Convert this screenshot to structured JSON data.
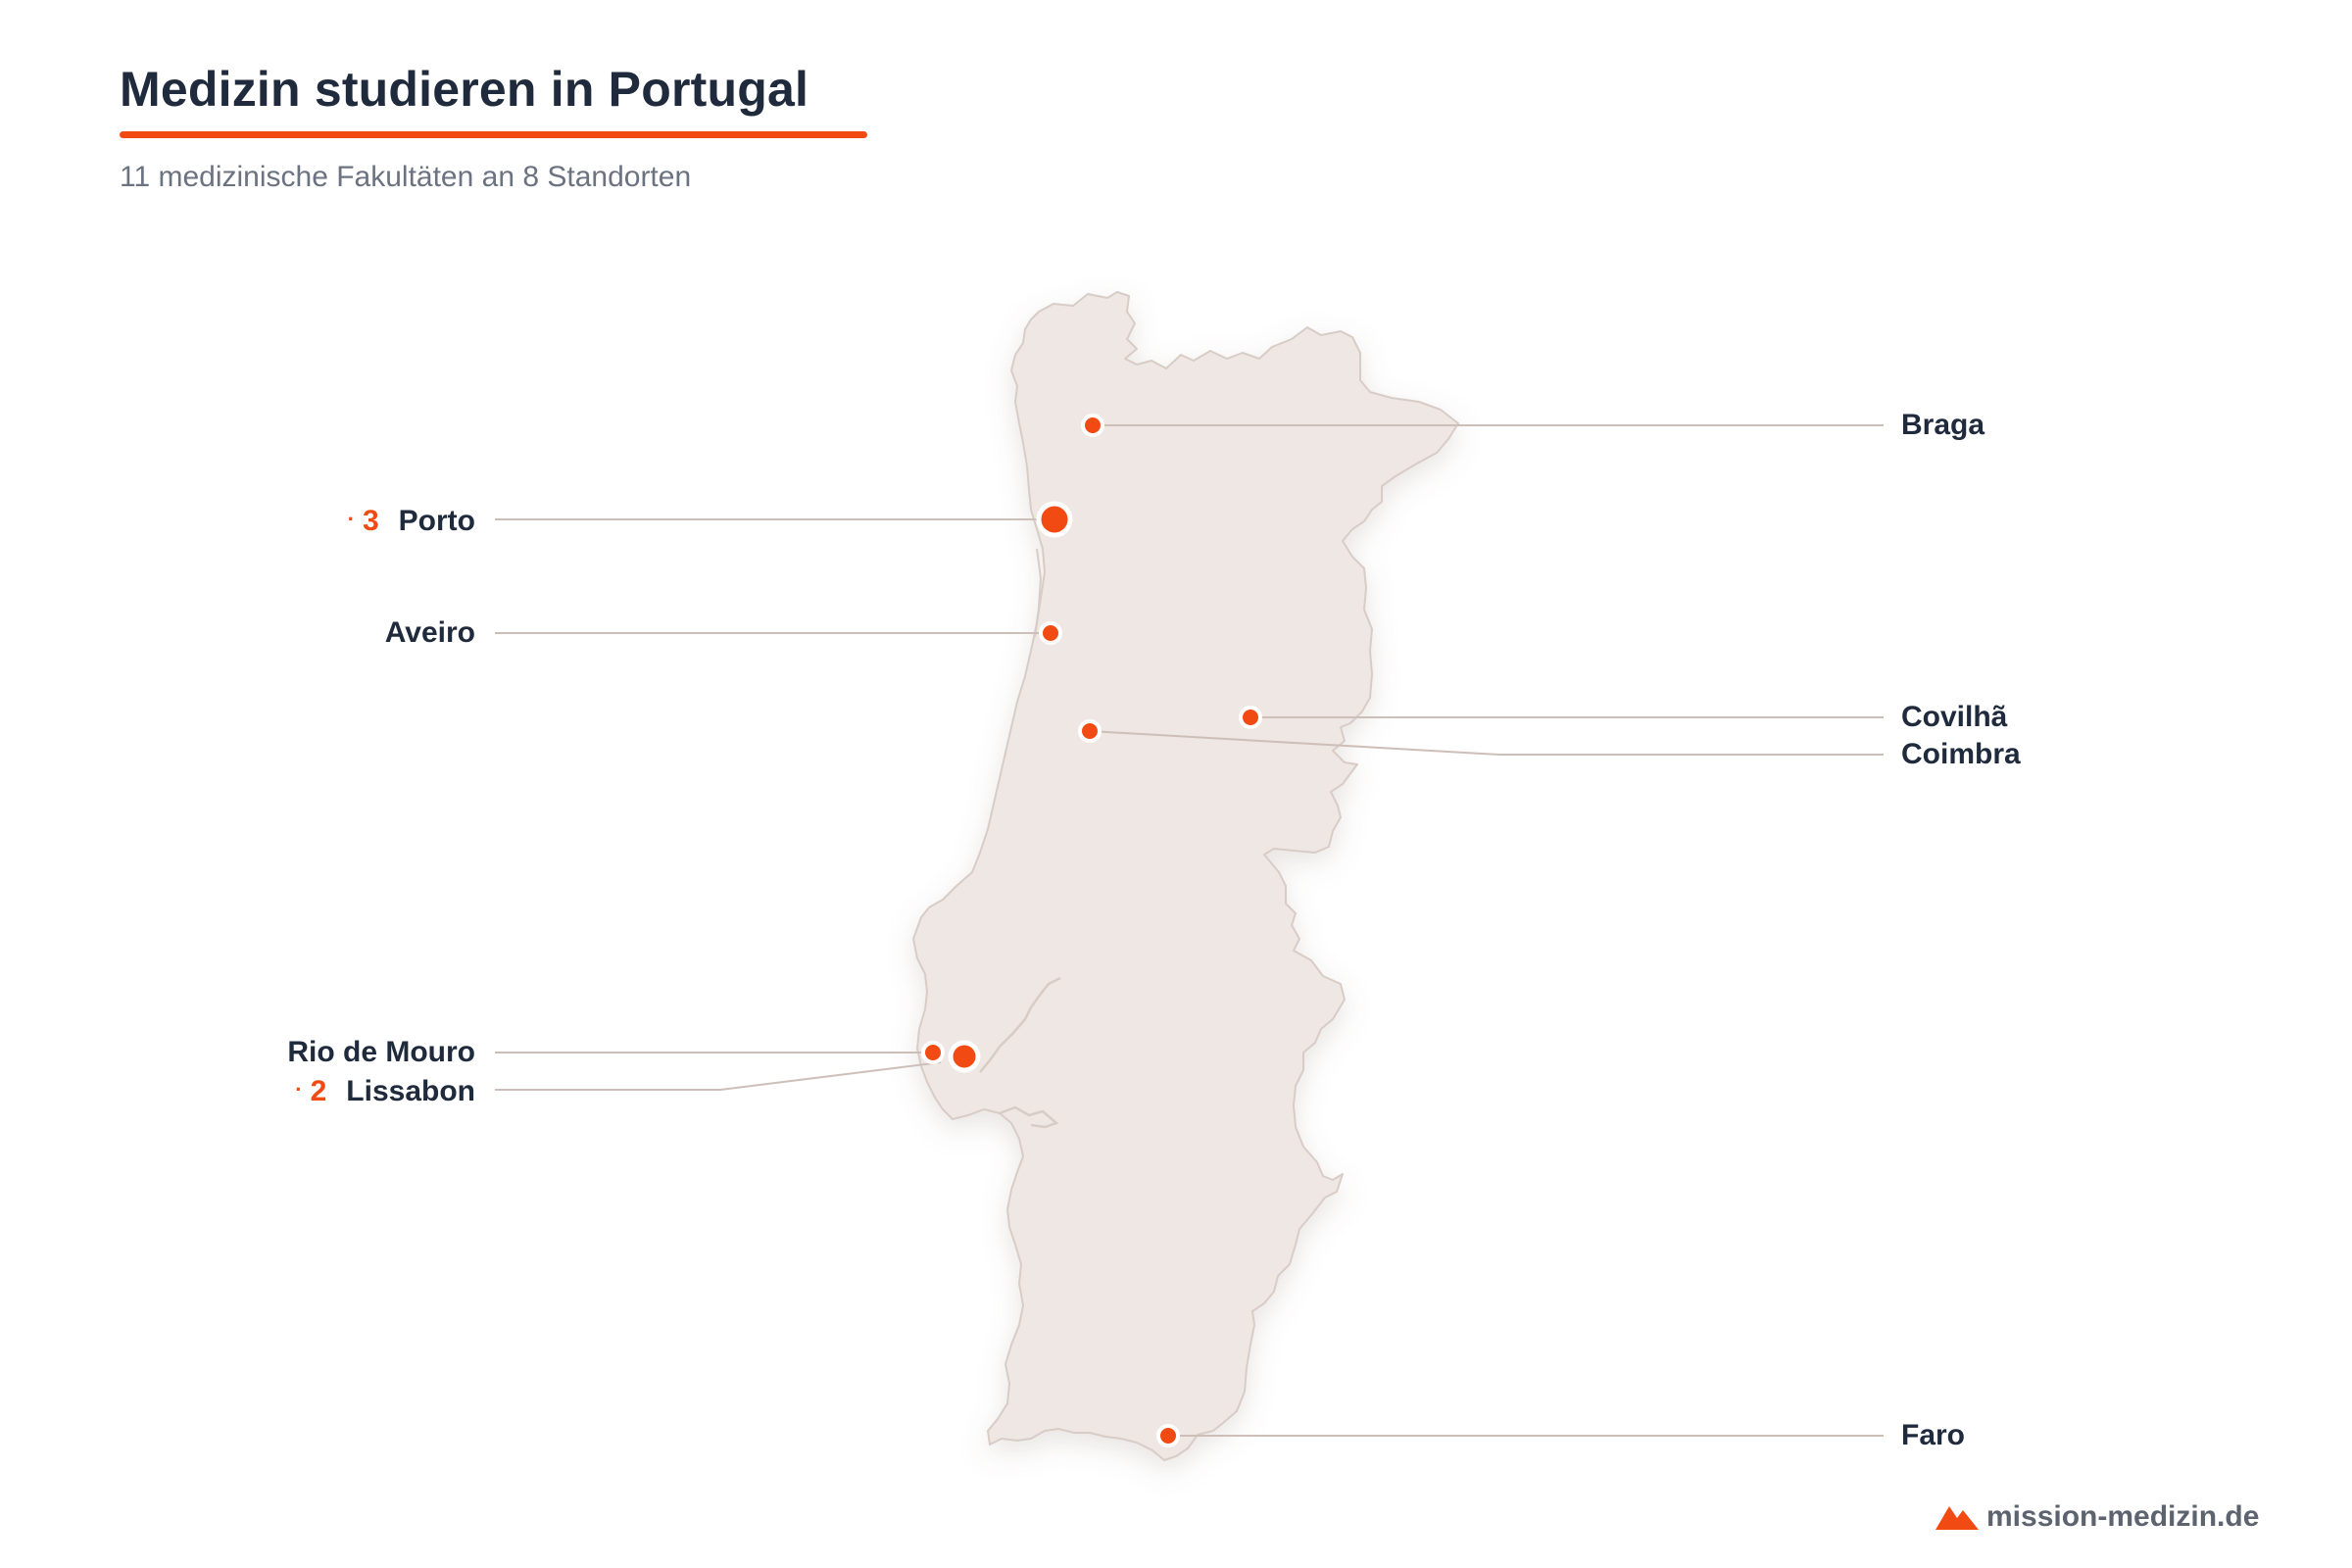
{
  "title": "Medizin studieren in Portugal",
  "subtitle": "11 medizinische Fakultäten an 8 Standorten",
  "colors": {
    "accent": "#f24a13",
    "land": "#efe7e3",
    "land_outline": "#d9cdc7",
    "leader_line": "#cdbfb8",
    "text": "#1f2a3c"
  },
  "locations": [
    {
      "name": "Braga",
      "count": ""
    },
    {
      "name": "Porto",
      "count": "3",
      "count_bullet": "·"
    },
    {
      "name": "Aveiro",
      "count": ""
    },
    {
      "name": "Covilhã",
      "count": ""
    },
    {
      "name": "Coimbra",
      "count": ""
    },
    {
      "name": "Rio de Mouro",
      "count": ""
    },
    {
      "name": "Lissabon",
      "count": "2",
      "count_bullet": "·"
    },
    {
      "name": "Faro",
      "count": ""
    }
  ],
  "brand": {
    "text": "mission-medizin.de",
    "icon": "mountain-logo-icon"
  }
}
